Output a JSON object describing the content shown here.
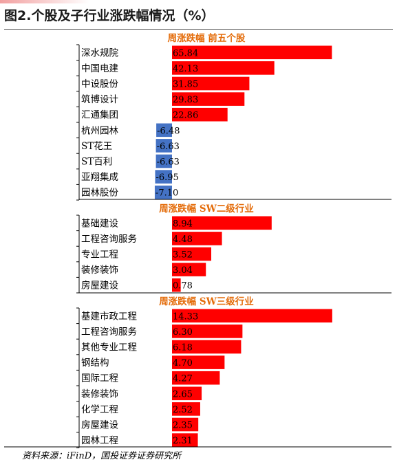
{
  "figure_title": "图2.个股及子行业涨跌幅情况（%）",
  "source_note": "资料来源：iFinD，国投证券证券研究所",
  "colors": {
    "positive": "#ff0000",
    "negative": "#4472c4",
    "section_title": "#e46c0a",
    "text": "#000000"
  },
  "chart_data": [
    {
      "type": "bar",
      "orientation": "horizontal",
      "title": "周涨跌幅 前五个股",
      "categories": [
        "深水规院",
        "中国电建",
        "中设股份",
        "筑博设计",
        "汇通集团",
        "杭州园林",
        "ST花王",
        "ST百利",
        "亚翔集成",
        "园林股份"
      ],
      "values": [
        65.84,
        42.13,
        31.85,
        29.83,
        22.86,
        -6.48,
        -6.63,
        -6.63,
        -6.95,
        -7.1
      ],
      "value_labels": [
        "65.84",
        "42.13",
        "31.85",
        "29.83",
        "22.86",
        "-6.48",
        "-6.63",
        "-6.63",
        "-6.95",
        "-7.10"
      ],
      "xlim": [
        -10,
        67
      ]
    },
    {
      "type": "bar",
      "orientation": "horizontal",
      "title": "周涨跌幅 SW二级行业",
      "categories": [
        "基础建设",
        "工程咨询服务",
        "专业工程",
        "装修装饰",
        "房屋建设"
      ],
      "values": [
        8.94,
        4.48,
        3.52,
        3.04,
        0.78
      ],
      "value_labels": [
        "8.94",
        "4.48",
        "3.52",
        "3.04",
        "0.78"
      ],
      "xlim": [
        0,
        15.8
      ]
    },
    {
      "type": "bar",
      "orientation": "horizontal",
      "title": "周涨跌幅 SW三级行业",
      "categories": [
        "基建市政工程",
        "工程咨询服务",
        "其他专业工程",
        "钢结构",
        "国际工程",
        "装修装饰",
        "化学工程",
        "房屋建设",
        "园林工程"
      ],
      "values": [
        14.33,
        6.3,
        6.18,
        4.7,
        4.27,
        2.65,
        2.52,
        2.35,
        2.31
      ],
      "value_labels": [
        "14.33",
        "6.30",
        "6.18",
        "4.70",
        "4.27",
        "2.65",
        "2.52",
        "2.35",
        "2.31"
      ],
      "xlim": [
        0,
        14.33
      ]
    }
  ]
}
